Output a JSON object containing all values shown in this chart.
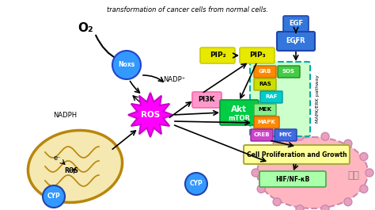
{
  "title_line": "transformation of cancer cells from normal cells.",
  "bg_color": "#ffffff",
  "o2_label": "O₂",
  "noxs_label": "Noxs",
  "noxs_color": "#3399ff",
  "nadp_label": "NADP⁺",
  "nadph_label": "NADPH",
  "ros_label": "ROS",
  "ros_color": "#ff00ff",
  "pi3k_label": "PI3K",
  "pi3k_color": "#ff99cc",
  "pip2_label": "PIP₂",
  "pip3_label": "PIP₃",
  "pip_color": "#e8e800",
  "akt_label": "Akt",
  "mtor_label": "mTOR",
  "akt_color": "#00cc44",
  "egf_label": "EGF",
  "egfr_label": "EGFR",
  "egfr_color": "#3377dd",
  "mapk_pathway_label": "MAPK/ERK pathway",
  "grb_label": "GRB",
  "ras_label": "RAS",
  "sos_label": "SOS",
  "raf_label": "RAF",
  "mek_label": "MEK",
  "mapk2_label": "MAPK",
  "creb_label": "CREB",
  "myc_label": "MYC",
  "cell_prolif_label": "Cell Proliferation and Growth",
  "hif_label": "HIF/NF-κB",
  "cyp_label": "CYP",
  "cyp_color": "#3399ff",
  "mito_outer": "#b8860b",
  "mito_fill": "#f5e8b0",
  "membrane_yellow": "#f5e030",
  "membrane_blue": "#3366cc",
  "nucleus_fill": "#ffb6c1",
  "nucleus_edge": "#cc88aa",
  "mapk_box_fill": "#ccffcc",
  "mapk_box_edge": "#00aaaa"
}
